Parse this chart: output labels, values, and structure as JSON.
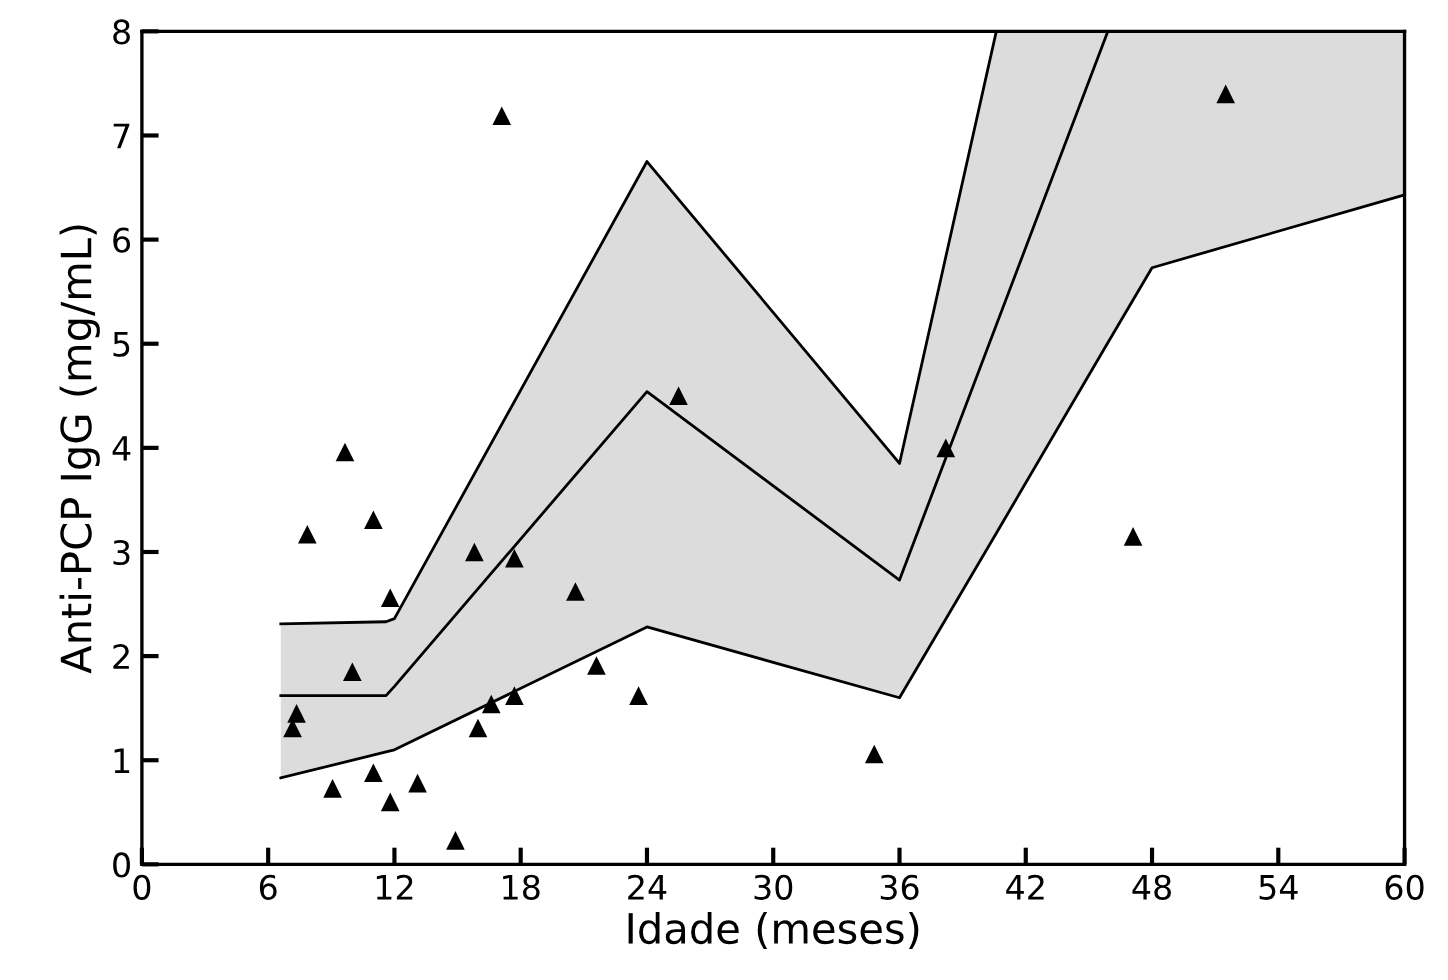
{
  "chart_data": {
    "type": "scatter",
    "xlabel": "Idade (meses)",
    "ylabel": "Anti-PCP IgG (mg/mL)",
    "xlim": [
      0,
      60
    ],
    "ylim": [
      0,
      8
    ],
    "xticks": [
      0,
      6,
      12,
      18,
      24,
      30,
      36,
      42,
      48,
      54,
      60
    ],
    "yticks": [
      0,
      1,
      2,
      3,
      4,
      5,
      6,
      7,
      8
    ],
    "grid": false,
    "legend": false,
    "series": [
      {
        "type": "line",
        "color": "#000000",
        "marker": "none",
        "x": [
          6.6,
          11.6,
          12,
          24,
          36,
          40.6,
          45.9,
          48,
          60
        ],
        "values": [
          1.62,
          1.62,
          1.71,
          4.54,
          2.73,
          5.18,
          8,
          null,
          null
        ],
        "lower": [
          0.83,
          1.08,
          1.1,
          2.28,
          1.6,
          3.18,
          5.01,
          5.73,
          6.43
        ],
        "upper": [
          2.31,
          2.33,
          2.36,
          6.75,
          3.85,
          8,
          8,
          8,
          8
        ]
      },
      {
        "type": "line",
        "color": "#000000",
        "marker": "none",
        "x": [
          6.6,
          11.6,
          12,
          24,
          36,
          40.6,
          45.9,
          48,
          60
        ],
        "values": [
          2.31,
          2.33,
          2.36,
          6.75,
          3.85,
          8,
          8,
          8,
          8
        ]
      },
      {
        "type": "line",
        "color": "#000000",
        "marker": "none",
        "x": [
          6.6,
          11.6,
          12,
          24,
          36,
          40.6,
          45.9,
          48,
          60
        ],
        "values": [
          0.83,
          1.08,
          1.1,
          2.28,
          1.6,
          3.18,
          5.01,
          5.73,
          6.43
        ]
      },
      {
        "color": "#000000",
        "marker": "triangle",
        "x": [
          7.86,
          11.0,
          15.8,
          17.7,
          11.8,
          20.6,
          10.0,
          21.6,
          23.6,
          7.35,
          7.16,
          16.6,
          17.7,
          15.97,
          9.06,
          11.0,
          11.8,
          13.1,
          14.9,
          9.65,
          17.1,
          25.5,
          38.2,
          51.5,
          34.8,
          47.1
        ],
        "values": [
          3.17,
          3.31,
          3.0,
          2.94,
          2.56,
          2.62,
          1.85,
          1.91,
          1.62,
          1.45,
          1.31,
          1.54,
          1.62,
          1.31,
          0.73,
          0.88,
          0.6,
          0.78,
          0.23,
          3.96,
          7.19,
          4.5,
          4.0,
          7.4,
          1.06,
          3.15
        ]
      }
    ]
  }
}
